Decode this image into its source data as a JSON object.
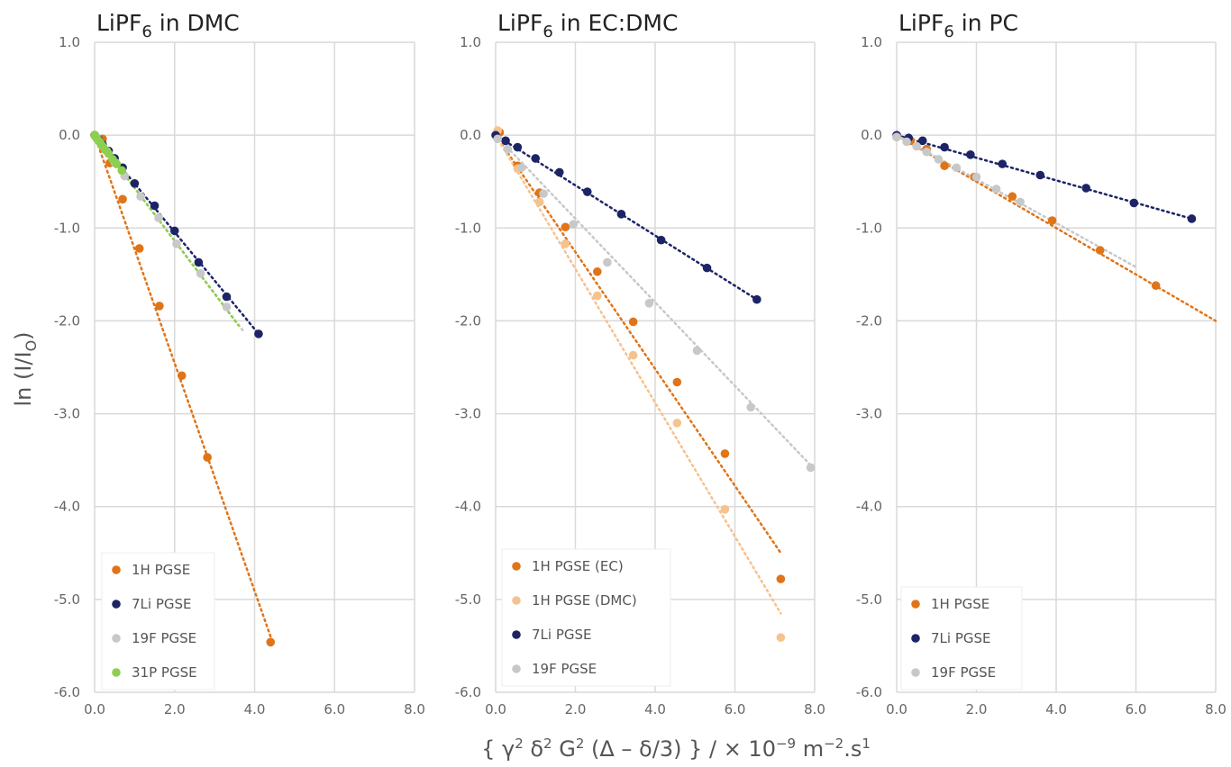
{
  "ylabel": {
    "main": "ln (I/I",
    "sub": "O",
    "close": ")"
  },
  "xlabel": {
    "a": "{ γ",
    "sa": "2",
    "b": " δ",
    "sb": "2",
    "c": " G",
    "sc": "2",
    "d": " (Δ – δ/3) } / × 10",
    "sd": "−9",
    "e": " m",
    "se": "−2",
    "f": ".s",
    "sf": "1"
  },
  "colors": {
    "1H": "#e07418",
    "1H_DMC": "#f6c28e",
    "7Li": "#1c2466",
    "19F": "#c8c8c8",
    "31P": "#8dcf4f",
    "grid": "#d9d9d9"
  },
  "chart_data": [
    {
      "type": "scatter",
      "title": "LiPF6 in DMC",
      "title_main": "LiPF",
      "title_sub": "6",
      "title_rest": " in DMC",
      "xlim": [
        0,
        8
      ],
      "ylim": [
        -6,
        1
      ],
      "x_ticks": [
        "0.0",
        "2.0",
        "4.0",
        "6.0",
        "8.0"
      ],
      "y_ticks": [
        "1.0",
        "0.0",
        "-1.0",
        "-2.0",
        "-3.0",
        "-4.0",
        "-5.0",
        "-6.0"
      ],
      "grid": true,
      "legend_position": "bottom-left",
      "series": [
        {
          "name": "1H PGSE",
          "color_key": "1H",
          "x": [
            0,
            0.2,
            0.38,
            0.7,
            1.12,
            1.62,
            2.18,
            2.82,
            4.4
          ],
          "y": [
            0,
            -0.04,
            -0.3,
            -0.69,
            -1.22,
            -1.84,
            -2.59,
            -3.47,
            -5.46
          ],
          "trend": [
            [
              0,
              0
            ],
            [
              4.4,
              -5.4
            ]
          ]
        },
        {
          "name": "7Li PGSE",
          "color_key": "7Li",
          "x": [
            0,
            0.1,
            0.2,
            0.35,
            0.5,
            0.7,
            1.0,
            1.5,
            2.0,
            2.6,
            3.3,
            4.1
          ],
          "y": [
            0,
            -0.05,
            -0.1,
            -0.17,
            -0.25,
            -0.35,
            -0.52,
            -0.76,
            -1.03,
            -1.37,
            -1.74,
            -2.14
          ],
          "trend": [
            [
              0,
              0
            ],
            [
              4.1,
              -2.14
            ]
          ]
        },
        {
          "name": "19F PGSE",
          "color_key": "19F",
          "x": [
            0.05,
            0.15,
            0.3,
            0.5,
            0.75,
            1.15,
            1.6,
            2.05,
            2.65,
            3.3
          ],
          "y": [
            -0.03,
            -0.09,
            -0.17,
            -0.29,
            -0.44,
            -0.66,
            -0.89,
            -1.17,
            -1.49,
            -1.85
          ],
          "trend": [
            [
              0,
              0
            ],
            [
              3.7,
              -2.1
            ]
          ]
        },
        {
          "name": "31P PGSE",
          "color_key": "31P",
          "x": [
            0,
            0.03,
            0.06,
            0.1,
            0.15,
            0.2,
            0.27,
            0.35,
            0.45,
            0.55,
            0.68
          ],
          "y": [
            0,
            -0.02,
            -0.04,
            -0.06,
            -0.09,
            -0.12,
            -0.16,
            -0.2,
            -0.26,
            -0.31,
            -0.38
          ],
          "trend": [
            [
              0,
              0
            ],
            [
              3.6,
              -2.05
            ]
          ]
        }
      ]
    },
    {
      "type": "scatter",
      "title": "LiPF6 in EC:DMC",
      "title_main": "LiPF",
      "title_sub": "6",
      "title_rest": " in EC:DMC",
      "xlim": [
        0,
        8
      ],
      "ylim": [
        -6,
        1
      ],
      "x_ticks": [
        "0.0",
        "2.0",
        "4.0",
        "6.0",
        "8.0"
      ],
      "y_ticks": [
        "1.0",
        "0.0",
        "-1.0",
        "-2.0",
        "-3.0",
        "-4.0",
        "-5.0",
        "-6.0"
      ],
      "grid": true,
      "legend_position": "bottom-left",
      "series": [
        {
          "name": "1H PGSE (EC)",
          "color_key": "1H",
          "x": [
            0.1,
            0.55,
            1.1,
            1.75,
            2.55,
            3.45,
            4.55,
            5.75,
            7.15
          ],
          "y": [
            0.03,
            -0.33,
            -0.62,
            -0.99,
            -1.47,
            -2.01,
            -2.66,
            -3.43,
            -4.78
          ],
          "trend": [
            [
              0,
              0
            ],
            [
              7.15,
              -4.5
            ]
          ]
        },
        {
          "name": "1H PGSE (DMC)",
          "color_key": "1H_DMC",
          "x": [
            0.05,
            0.55,
            1.1,
            1.75,
            2.55,
            3.45,
            4.55,
            5.75,
            7.15
          ],
          "y": [
            0.05,
            -0.36,
            -0.72,
            -1.17,
            -1.73,
            -2.37,
            -3.1,
            -4.03,
            -5.41
          ],
          "trend": [
            [
              0,
              0
            ],
            [
              7.15,
              -5.15
            ]
          ]
        },
        {
          "name": "7Li PGSE",
          "color_key": "7Li",
          "x": [
            0,
            0.25,
            0.55,
            1.0,
            1.6,
            2.3,
            3.15,
            4.15,
            5.3,
            6.55
          ],
          "y": [
            0,
            -0.06,
            -0.13,
            -0.25,
            -0.4,
            -0.61,
            -0.85,
            -1.13,
            -1.43,
            -1.77
          ],
          "trend": [
            [
              0,
              0
            ],
            [
              6.55,
              -1.77
            ]
          ]
        },
        {
          "name": "19F PGSE",
          "color_key": "19F",
          "x": [
            0.05,
            0.3,
            0.65,
            1.2,
            1.95,
            2.8,
            3.85,
            5.05,
            6.4,
            7.9
          ],
          "y": [
            -0.04,
            -0.15,
            -0.35,
            -0.63,
            -0.96,
            -1.37,
            -1.81,
            -2.32,
            -2.93,
            -3.58
          ],
          "trend": [
            [
              0,
              0
            ],
            [
              8.0,
              -3.6
            ]
          ]
        }
      ]
    },
    {
      "type": "scatter",
      "title": "LiPF6 in PC",
      "title_main": "LiPF",
      "title_sub": "6",
      "title_rest": " in PC",
      "xlim": [
        0,
        8
      ],
      "ylim": [
        -6,
        1
      ],
      "x_ticks": [
        "0.0",
        "2.0",
        "4.0",
        "6.0",
        "8.0"
      ],
      "y_ticks": [
        "1.0",
        "0.0",
        "-1.0",
        "-2.0",
        "-3.0",
        "-4.0",
        "-5.0",
        "-6.0"
      ],
      "grid": true,
      "legend_position": "bottom-left",
      "series": [
        {
          "name": "1H PGSE",
          "color_key": "1H",
          "x": [
            0,
            0.35,
            0.75,
            1.2,
            1.95,
            2.9,
            3.9,
            5.1,
            6.5
          ],
          "y": [
            -0.02,
            -0.06,
            -0.15,
            -0.33,
            -0.45,
            -0.66,
            -0.92,
            -1.24,
            -1.62
          ],
          "trend": [
            [
              0,
              0
            ],
            [
              8.0,
              -2.0
            ]
          ]
        },
        {
          "name": "7Li PGSE",
          "color_key": "7Li",
          "x": [
            0,
            0.3,
            0.65,
            1.2,
            1.85,
            2.65,
            3.6,
            4.75,
            5.95,
            7.4
          ],
          "y": [
            0,
            -0.03,
            -0.06,
            -0.13,
            -0.21,
            -0.31,
            -0.43,
            -0.57,
            -0.73,
            -0.9
          ],
          "trend": [
            [
              0,
              0
            ],
            [
              7.4,
              -0.9
            ]
          ]
        },
        {
          "name": "19F PGSE",
          "color_key": "19F",
          "x": [
            0,
            0.25,
            0.5,
            0.75,
            1.05,
            1.5,
            2.0,
            2.5,
            3.1
          ],
          "y": [
            -0.02,
            -0.07,
            -0.12,
            -0.18,
            -0.26,
            -0.35,
            -0.45,
            -0.58,
            -0.72
          ],
          "trend": [
            [
              0,
              0
            ],
            [
              6.0,
              -1.42
            ]
          ]
        }
      ]
    }
  ]
}
